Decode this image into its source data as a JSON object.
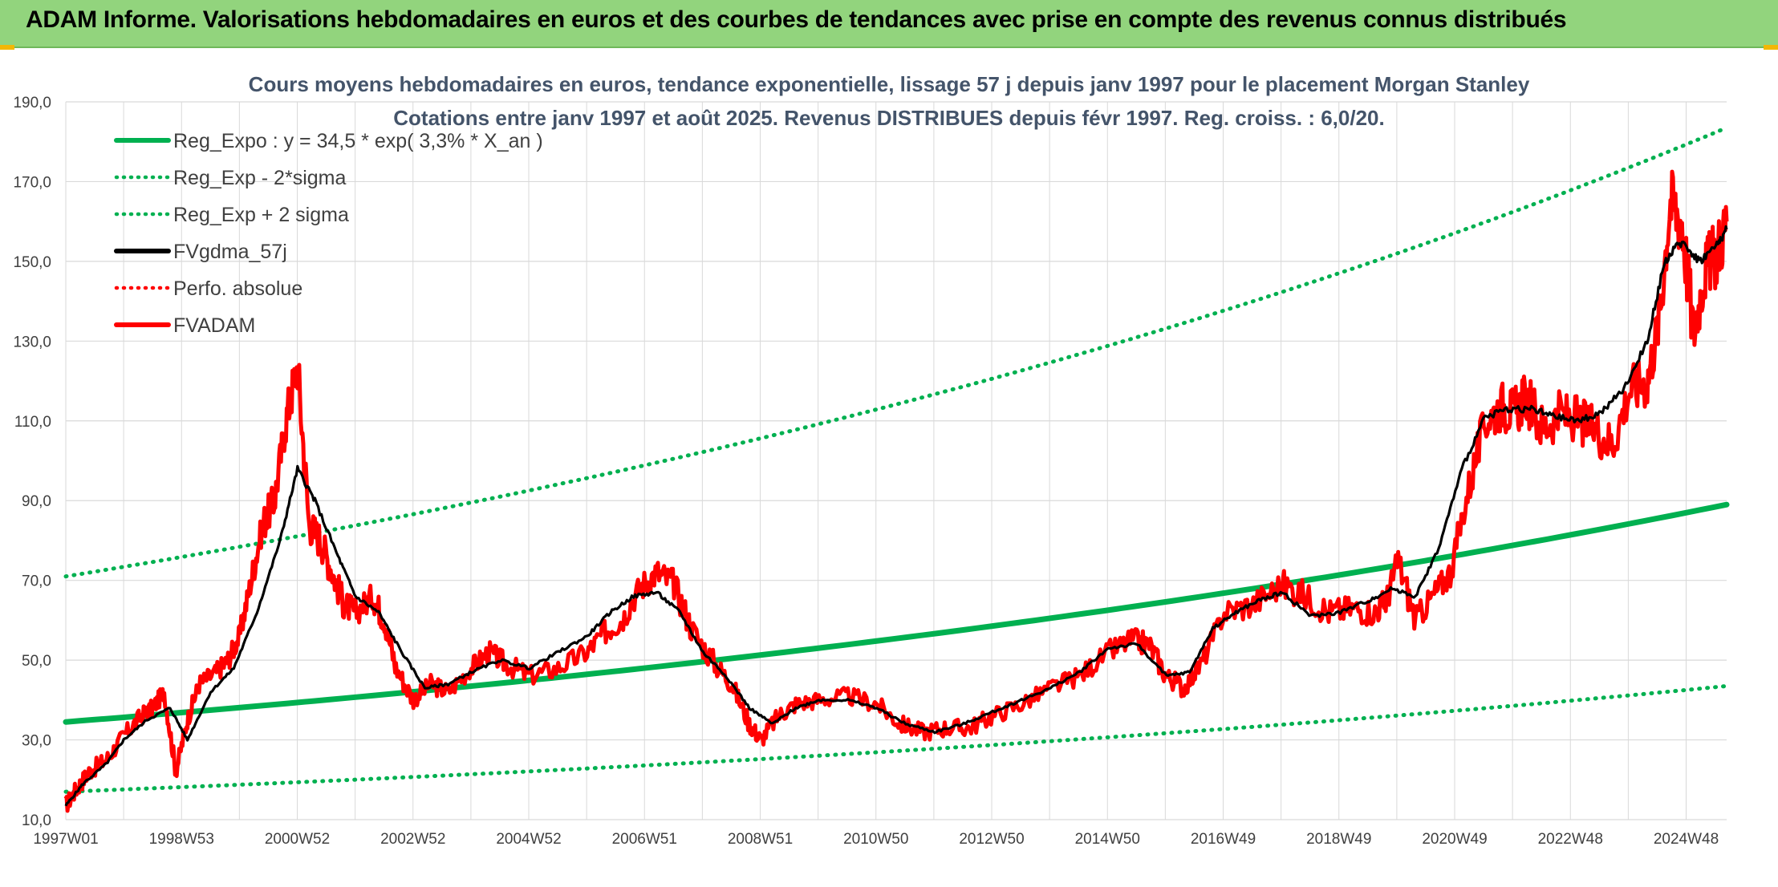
{
  "header": {
    "title": "ADAM Informe. Valorisations hebdomadaires en euros et des courbes de tendances avec prise en compte des revenus connus distribués"
  },
  "colors": {
    "banner": "#92d47d",
    "reg": "#00b050",
    "price": "#ff0000",
    "smooth": "#000000",
    "grid": "#d9d9d9",
    "title_text": "#44546a"
  },
  "chart_data": {
    "type": "line",
    "title": "Cours moyens hebdomadaires en euros, tendance exponentielle, lissage 57 j depuis janv 1997 pour le placement Morgan Stanley",
    "subtitle": "Cotations entre janv 1997 et août 2025. Revenus DISTRIBUES depuis févr 1997. Reg. croiss. : 6,0/20.",
    "xlabel": "",
    "ylabel": "",
    "ylim": [
      10,
      190
    ],
    "yticks": [
      "10,0",
      "30,0",
      "50,0",
      "70,0",
      "90,0",
      "110,0",
      "130,0",
      "150,0",
      "170,0",
      "190,0"
    ],
    "xlim": [
      1997.0,
      2025.67
    ],
    "xtick_labels": [
      "1997W01",
      "1998W53",
      "2000W52",
      "2002W52",
      "2004W52",
      "2006W51",
      "2008W51",
      "2010W50",
      "2012W50",
      "2014W50",
      "2016W49",
      "2018W49",
      "2020W49",
      "2022W48",
      "2024W48"
    ],
    "grid": true,
    "legend_position": "top-left",
    "legend": [
      {
        "label": "Reg_Expo : y = 34,5 * exp( 3,3% *  X_an )",
        "style": "solid",
        "color": "#00b050"
      },
      {
        "label": "Reg_Exp - 2*sigma",
        "style": "dotted",
        "color": "#00b050"
      },
      {
        "label": "Reg_Exp + 2 sigma",
        "style": "dotted",
        "color": "#00b050"
      },
      {
        "label": "FVgdma_57j",
        "style": "solid",
        "color": "#000000"
      },
      {
        "label": "Perfo. absolue",
        "style": "dotted",
        "color": "#ff0000"
      },
      {
        "label": "FVADAM",
        "style": "solid",
        "color": "#ff0000"
      }
    ],
    "x_year": [
      1997.0,
      2025.67
    ],
    "series": [
      {
        "name": "Reg_Expo : y = 34,5 * exp( 3,3% *  X_an )",
        "x": [
          1997.0,
          2025.67
        ],
        "values": [
          34.5,
          89.0
        ]
      },
      {
        "name": "Reg_Exp - 2*sigma",
        "x": [
          1997.0,
          2025.67
        ],
        "values": [
          17.0,
          43.5
        ]
      },
      {
        "name": "Reg_Exp + 2 sigma",
        "x": [
          1997.0,
          2025.67
        ],
        "values": [
          71.0,
          183.5
        ]
      },
      {
        "name": "FVADAM",
        "x": [
          1997.0,
          1997.2,
          1997.4,
          1997.7,
          1998.0,
          1998.3,
          1998.5,
          1998.7,
          1998.9,
          1999.1,
          1999.3,
          1999.6,
          1999.8,
          2000.0,
          2000.2,
          2000.4,
          2000.6,
          2000.8,
          2001.0,
          2001.2,
          2001.4,
          2001.6,
          2001.8,
          2002.0,
          2002.3,
          2002.5,
          2002.7,
          2003.0,
          2003.3,
          2003.6,
          2004.0,
          2004.3,
          2004.6,
          2005.0,
          2005.5,
          2006.0,
          2006.3,
          2006.6,
          2006.9,
          2007.2,
          2007.5,
          2007.8,
          2008.2,
          2008.5,
          2008.8,
          2009.0,
          2009.3,
          2009.6,
          2010.0,
          2010.5,
          2011.0,
          2011.4,
          2011.8,
          2012.2,
          2012.6,
          2013.0,
          2013.5,
          2014.0,
          2014.5,
          2015.0,
          2015.4,
          2015.7,
          2016.0,
          2016.3,
          2016.6,
          2017.0,
          2017.5,
          2018.0,
          2018.4,
          2018.8,
          2019.2,
          2019.6,
          2019.8,
          2020.0,
          2020.3,
          2020.6,
          2020.9,
          2021.2,
          2021.5,
          2021.8,
          2022.0,
          2022.2,
          2022.5,
          2022.8,
          2023.1,
          2023.4,
          2023.7,
          2024.0,
          2024.3,
          2024.5,
          2024.7,
          2024.9,
          2025.1,
          2025.3,
          2025.5,
          2025.67
        ],
        "values": [
          13.5,
          18,
          22,
          25,
          31,
          36,
          38,
          42,
          22,
          35,
          44,
          47,
          50,
          56,
          70,
          84,
          90,
          110,
          124,
          84,
          80,
          72,
          64,
          62,
          66,
          60,
          48,
          40,
          44,
          42,
          48,
          52,
          49,
          46,
          48,
          52,
          57,
          60,
          68,
          72,
          69,
          58,
          49,
          44,
          34,
          30,
          36,
          39,
          40,
          41,
          39,
          34,
          32,
          33,
          33,
          36,
          39,
          43,
          46,
          52,
          55,
          54,
          46,
          43,
          49,
          62,
          64,
          69,
          66,
          62,
          63,
          62,
          65,
          75,
          60,
          66,
          72,
          92,
          110,
          114,
          112,
          116,
          108,
          112,
          110,
          108,
          104,
          118,
          120,
          135,
          165,
          160,
          132,
          148,
          152,
          160
        ]
      },
      {
        "name": "FVgdma_57j",
        "x": [
          1997.0,
          1997.3,
          1997.7,
          1998.0,
          1998.4,
          1998.8,
          1999.1,
          1999.5,
          1999.9,
          2000.3,
          2000.7,
          2001.0,
          2001.3,
          2001.7,
          2002.0,
          2002.4,
          2002.8,
          2003.2,
          2003.6,
          2004.0,
          2004.5,
          2005.0,
          2005.5,
          2006.0,
          2006.4,
          2006.8,
          2007.2,
          2007.6,
          2008.0,
          2008.4,
          2008.8,
          2009.2,
          2009.6,
          2010.0,
          2010.5,
          2011.0,
          2011.5,
          2012.0,
          2012.5,
          2013.0,
          2013.5,
          2014.0,
          2014.5,
          2015.0,
          2015.5,
          2016.0,
          2016.4,
          2016.8,
          2017.2,
          2017.6,
          2018.0,
          2018.5,
          2019.0,
          2019.5,
          2019.9,
          2020.3,
          2020.7,
          2021.1,
          2021.5,
          2021.9,
          2022.3,
          2022.7,
          2023.1,
          2023.5,
          2023.9,
          2024.3,
          2024.6,
          2024.9,
          2025.2,
          2025.5,
          2025.67
        ],
        "values": [
          13.5,
          19,
          24,
          30,
          35,
          38,
          30,
          42,
          48,
          62,
          80,
          98,
          90,
          76,
          66,
          62,
          52,
          43,
          44,
          47,
          50,
          48,
          52,
          56,
          62,
          66,
          67,
          62,
          52,
          46,
          38,
          34,
          38,
          40,
          40,
          38,
          34,
          32,
          34,
          37,
          40,
          43,
          47,
          53,
          54,
          46,
          47,
          58,
          62,
          65,
          67,
          61,
          62,
          65,
          68,
          66,
          78,
          98,
          111,
          113,
          113,
          111,
          110,
          112,
          118,
          130,
          150,
          155,
          150,
          154,
          158
        ]
      }
    ]
  }
}
